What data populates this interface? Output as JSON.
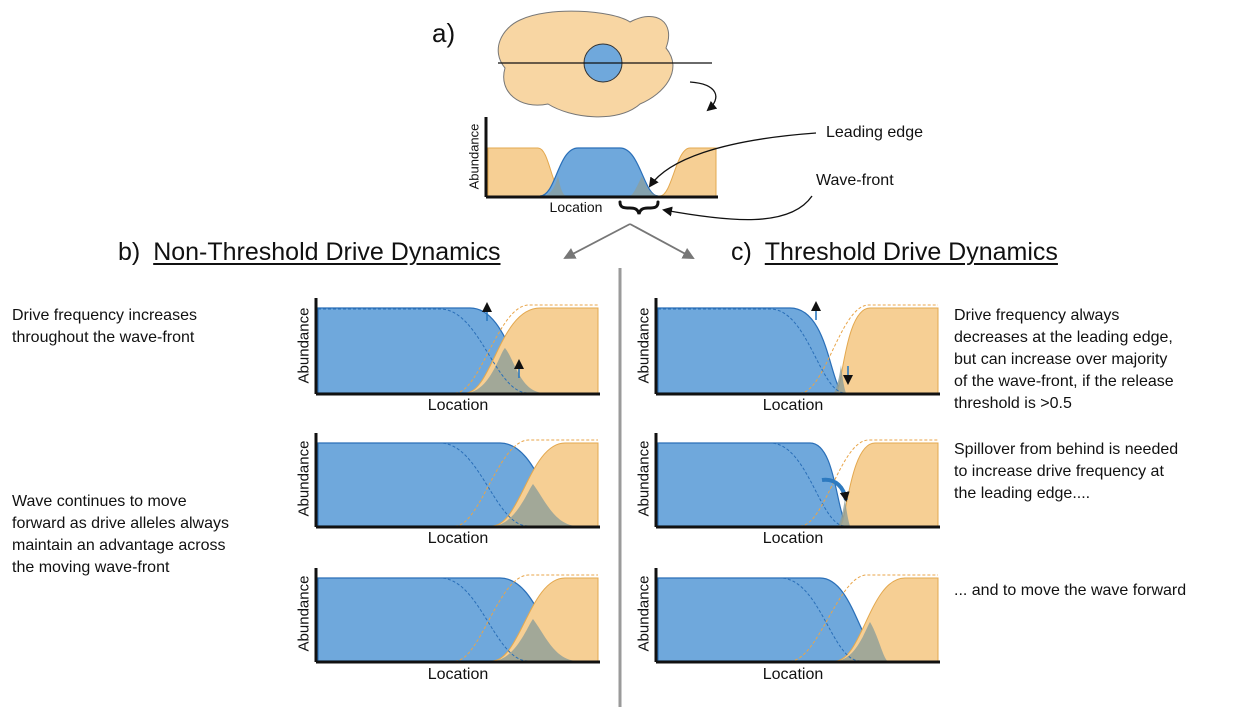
{
  "panel_a": {
    "label": "a)",
    "ylabel": "Abundance",
    "xlabel": "Location",
    "leading_edge_label": "Leading edge",
    "wave_front_label": "Wave-front"
  },
  "panel_b": {
    "letter": "b)",
    "title": "Non-Threshold Drive Dynamics",
    "text_1": "Drive frequency increases\nthroughout the wave-front",
    "text_2": "Wave continues to move\nforward as drive alleles always\nmaintain an advantage across\nthe moving wave-front",
    "plots": [
      {
        "ylabel": "Abundance",
        "xlabel": "Location"
      },
      {
        "ylabel": "Abundance",
        "xlabel": "Location"
      },
      {
        "ylabel": "Abundance",
        "xlabel": "Location"
      }
    ]
  },
  "panel_c": {
    "letter": "c)",
    "title": "Threshold Drive Dynamics",
    "text_1": "Drive frequency always\ndecreases at the leading edge,\nbut can increase over majority\nof the wave-front, if the release\nthreshold is >0.5",
    "text_2": "Spillover from behind is needed\nto increase drive frequency at\nthe leading edge....",
    "text_3": "... and to move the wave forward",
    "plots": [
      {
        "ylabel": "Abundance",
        "xlabel": "Location"
      },
      {
        "ylabel": "Abundance",
        "xlabel": "Location"
      },
      {
        "ylabel": "Abundance",
        "xlabel": "Location"
      }
    ]
  },
  "colors": {
    "drive": "#6fa8dc",
    "drive_line": "#2a6fb8",
    "wild_type": "#f6cf94",
    "wild_type_line": "#e8a54a",
    "cell_body": "#f8d6a3",
    "overlap": "#8d9e98",
    "divider": "#9a9a9a",
    "arrow": "#2d7ac0"
  }
}
